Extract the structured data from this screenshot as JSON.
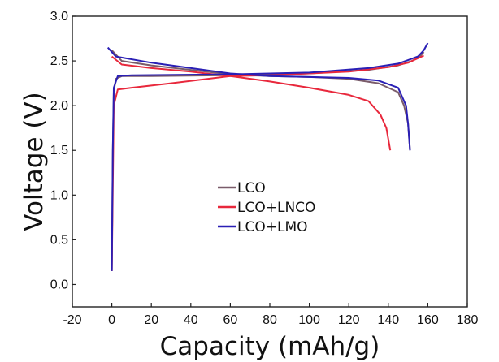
{
  "chart_data": {
    "type": "line",
    "xlabel": "Capacity (mAh/g)",
    "ylabel": "Voltage (V)",
    "xlim": [
      -20,
      180
    ],
    "ylim": [
      -0.25,
      3.0
    ],
    "x_ticks": [
      -20,
      0,
      20,
      40,
      60,
      80,
      100,
      120,
      140,
      160,
      180
    ],
    "y_ticks": [
      0.0,
      0.5,
      1.0,
      1.5,
      2.0,
      2.5,
      3.0
    ],
    "y_tick_labels": [
      "0.0",
      "0.5",
      "1.0",
      "1.5",
      "2.0",
      "2.5",
      "3.0"
    ],
    "legend_position": "center",
    "grid": false,
    "series": [
      {
        "name": "LCO",
        "color": "#7a5c6a",
        "charge": [
          [
            0,
            0.15
          ],
          [
            0.5,
            1.5
          ],
          [
            1,
            2.15
          ],
          [
            2,
            2.3
          ],
          [
            5,
            2.33
          ],
          [
            20,
            2.33
          ],
          [
            60,
            2.34
          ],
          [
            100,
            2.36
          ],
          [
            130,
            2.4
          ],
          [
            145,
            2.45
          ],
          [
            152,
            2.5
          ],
          [
            156,
            2.55
          ],
          [
            158,
            2.6
          ]
        ],
        "discharge": [
          [
            0,
            2.62
          ],
          [
            5,
            2.5
          ],
          [
            20,
            2.45
          ],
          [
            40,
            2.4
          ],
          [
            60,
            2.35
          ],
          [
            80,
            2.33
          ],
          [
            100,
            2.32
          ],
          [
            120,
            2.3
          ],
          [
            135,
            2.25
          ],
          [
            145,
            2.15
          ],
          [
            148,
            2.0
          ],
          [
            150,
            1.8
          ],
          [
            151,
            1.5
          ]
        ]
      },
      {
        "name": "LCO+LNCO",
        "color": "#e8283c",
        "charge": [
          [
            0,
            0.15
          ],
          [
            1,
            2.0
          ],
          [
            3,
            2.18
          ],
          [
            10,
            2.2
          ],
          [
            30,
            2.25
          ],
          [
            60,
            2.33
          ],
          [
            80,
            2.34
          ],
          [
            100,
            2.36
          ],
          [
            120,
            2.38
          ],
          [
            140,
            2.43
          ],
          [
            150,
            2.48
          ],
          [
            158,
            2.56
          ]
        ],
        "discharge": [
          [
            0,
            2.55
          ],
          [
            5,
            2.46
          ],
          [
            20,
            2.42
          ],
          [
            40,
            2.38
          ],
          [
            60,
            2.33
          ],
          [
            80,
            2.27
          ],
          [
            100,
            2.2
          ],
          [
            120,
            2.12
          ],
          [
            130,
            2.05
          ],
          [
            136,
            1.9
          ],
          [
            139,
            1.75
          ],
          [
            141,
            1.5
          ]
        ]
      },
      {
        "name": "LCO+LMO",
        "color": "#2a1fb5",
        "charge": [
          [
            0,
            0.15
          ],
          [
            0.5,
            1.5
          ],
          [
            1,
            2.2
          ],
          [
            3,
            2.33
          ],
          [
            10,
            2.34
          ],
          [
            60,
            2.35
          ],
          [
            100,
            2.37
          ],
          [
            130,
            2.42
          ],
          [
            145,
            2.47
          ],
          [
            155,
            2.55
          ],
          [
            158,
            2.62
          ],
          [
            160,
            2.7
          ]
        ],
        "discharge": [
          [
            -2,
            2.65
          ],
          [
            2,
            2.55
          ],
          [
            20,
            2.48
          ],
          [
            40,
            2.42
          ],
          [
            60,
            2.36
          ],
          [
            80,
            2.33
          ],
          [
            100,
            2.32
          ],
          [
            120,
            2.31
          ],
          [
            135,
            2.28
          ],
          [
            145,
            2.2
          ],
          [
            149,
            2.0
          ],
          [
            150,
            1.8
          ],
          [
            151,
            1.5
          ]
        ]
      }
    ]
  }
}
